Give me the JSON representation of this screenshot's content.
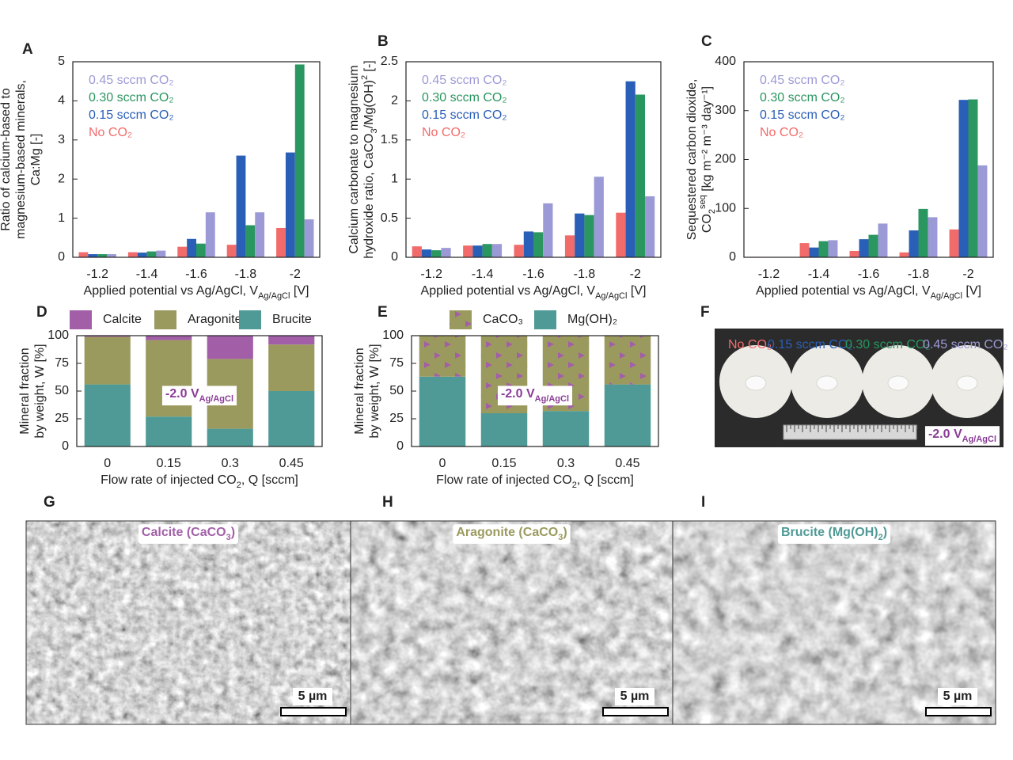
{
  "chart_data": [
    {
      "panel": "A",
      "type": "bar",
      "categories": [
        "-1.2",
        "-1.4",
        "-1.6",
        "-1.8",
        "-2"
      ],
      "series": [
        {
          "name": "No CO₂",
          "color": "#f26b6b",
          "values": [
            0.13,
            0.13,
            0.27,
            0.32,
            0.75
          ]
        },
        {
          "name": "0.15 sccm CO₂",
          "color": "#2a5fb8",
          "values": [
            0.08,
            0.12,
            0.47,
            2.6,
            2.68
          ]
        },
        {
          "name": "0.30 sccm CO₂",
          "color": "#2a9660",
          "values": [
            0.08,
            0.15,
            0.35,
            0.82,
            4.93
          ]
        },
        {
          "name": "0.45 sccm CO₂",
          "color": "#9c9ad6",
          "values": [
            0.08,
            0.17,
            1.15,
            1.15,
            0.97
          ]
        }
      ],
      "ylim": [
        0,
        5
      ],
      "yticks": [
        0,
        1,
        2,
        3,
        4,
        5
      ],
      "ylabel": [
        "Ratio of calcium-based to",
        "magnesium-based minerals,",
        "Ca:Mg [-]"
      ],
      "xlabel": [
        [
          "Applied potential vs Ag/AgCl, V",
          "Ag/AgCl",
          " [V]"
        ]
      ]
    },
    {
      "panel": "B",
      "type": "bar",
      "categories": [
        "-1.2",
        "-1.4",
        "-1.6",
        "-1.8",
        "-2"
      ],
      "series": [
        {
          "name": "No CO₂",
          "color": "#f26b6b",
          "values": [
            0.14,
            0.15,
            0.16,
            0.28,
            0.57
          ]
        },
        {
          "name": "0.15 sccm CO₂",
          "color": "#2a5fb8",
          "values": [
            0.1,
            0.15,
            0.33,
            0.56,
            2.25
          ]
        },
        {
          "name": "0.30 sccm CO₂",
          "color": "#2a9660",
          "values": [
            0.09,
            0.17,
            0.32,
            0.54,
            2.08
          ]
        },
        {
          "name": "0.45 sccm CO₂",
          "color": "#9c9ad6",
          "values": [
            0.12,
            0.17,
            0.69,
            1.03,
            0.78
          ]
        }
      ],
      "ylim": [
        0,
        2.5
      ],
      "yticks": [
        0,
        0.5,
        1,
        1.5,
        2,
        2.5
      ],
      "ylabel": [
        "Calcium carbonate to magnesium",
        [
          "hydroxide ratio, CaCO",
          "3",
          "/Mg(OH)",
          "2",
          " [-]"
        ]
      ],
      "xlabel": [
        [
          "Applied potential vs Ag/AgCl, V",
          "Ag/AgCl",
          " [V]"
        ]
      ]
    },
    {
      "panel": "C",
      "type": "bar",
      "categories": [
        "-1.2",
        "-1.4",
        "-1.6",
        "-1.8",
        "-2"
      ],
      "series": [
        {
          "name": "No CO₂",
          "color": "#f26b6b",
          "values": [
            1,
            29,
            13,
            10,
            57
          ]
        },
        {
          "name": "0.15 sccm CO₂",
          "color": "#2a5fb8",
          "values": [
            0,
            20,
            37,
            55,
            322
          ]
        },
        {
          "name": "0.30 sccm CO₂",
          "color": "#2a9660",
          "values": [
            0,
            33,
            46,
            99,
            323
          ]
        },
        {
          "name": "0.45 sccm CO₂",
          "color": "#9c9ad6",
          "values": [
            0,
            35,
            69,
            82,
            188
          ]
        }
      ],
      "ylim": [
        0,
        400
      ],
      "yticks": [
        0,
        100,
        200,
        300,
        400
      ],
      "ylabel": [
        "Sequestered carbon dioxide,",
        [
          "CO",
          "2",
          "",
          "seq",
          " [kg m⁻² m⁻³ day⁻¹]"
        ]
      ],
      "xlabel": [
        [
          "Applied potential vs Ag/AgCl, V",
          "Ag/AgCl",
          " [V]"
        ]
      ]
    },
    {
      "panel": "D",
      "type": "stacked_bar",
      "categories": [
        "0",
        "0.15",
        "0.3",
        "0.45"
      ],
      "series": [
        {
          "name": "Brucite",
          "color": "#4f9a96",
          "values": [
            56,
            27,
            16,
            50
          ]
        },
        {
          "name": "Aragonite",
          "color": "#9b9a5e",
          "values": [
            43,
            69,
            63,
            42
          ]
        },
        {
          "name": "Calcite",
          "color": "#a25fa8",
          "values": [
            1,
            4,
            21,
            8
          ]
        }
      ],
      "ylim": [
        0,
        100
      ],
      "yticks": [
        0,
        25,
        50,
        75,
        100
      ],
      "ylabel": [
        "Mineral fraction",
        "by weight, W [%]"
      ],
      "xlabel": [
        [
          "Flow rate of injected CO",
          "2",
          ", Q [sccm]"
        ]
      ],
      "annotation": [
        "-2.0 V",
        "Ag/AgCl"
      ]
    },
    {
      "panel": "E",
      "type": "stacked_bar",
      "categories": [
        "0",
        "0.15",
        "0.3",
        "0.45"
      ],
      "series": [
        {
          "name": "Mg(OH)₂",
          "color": "#4f9a96",
          "values": [
            63,
            30,
            32,
            56
          ]
        },
        {
          "name": "CaCO₃",
          "color": "#9b9a5e",
          "hatch": "triangles",
          "hatch_color": "#a25fa8",
          "values": [
            37,
            70,
            68,
            44
          ]
        }
      ],
      "ylim": [
        0,
        100
      ],
      "yticks": [
        0,
        25,
        50,
        75,
        100
      ],
      "ylabel": [
        "Mineral fraction",
        "by weight, W [%]"
      ],
      "xlabel": [
        [
          "Flow rate of injected CO",
          "2",
          ", Q [sccm]"
        ]
      ],
      "annotation": [
        "-2.0 V",
        "Ag/AgCl"
      ]
    }
  ],
  "photo": {
    "panel": "F",
    "labels": [
      {
        "text": "No CO₂",
        "color": "#f26b6b"
      },
      {
        "text": "0.15 sccm CO₂",
        "color": "#2a5fb8"
      },
      {
        "text": "0.30 sccm CO₂",
        "color": "#2a9660"
      },
      {
        "text": "0.45 sccm CO₂",
        "color": "#9c9ad6"
      }
    ],
    "annotation": [
      "-2.0 V",
      "Ag/AgCl"
    ]
  },
  "micrographs": [
    {
      "panel": "G",
      "label": [
        "Calcite (CaCO",
        "3",
        ")"
      ],
      "color": "#a25fa8",
      "scale": "5 µm"
    },
    {
      "panel": "H",
      "label": [
        "Aragonite (CaCO",
        "3",
        ")"
      ],
      "color": "#9b9a5e",
      "scale": "5 µm"
    },
    {
      "panel": "I",
      "label": [
        "Brucite (Mg(OH)",
        "2",
        ")"
      ],
      "color": "#4f9a96",
      "scale": "5 µm"
    }
  ]
}
